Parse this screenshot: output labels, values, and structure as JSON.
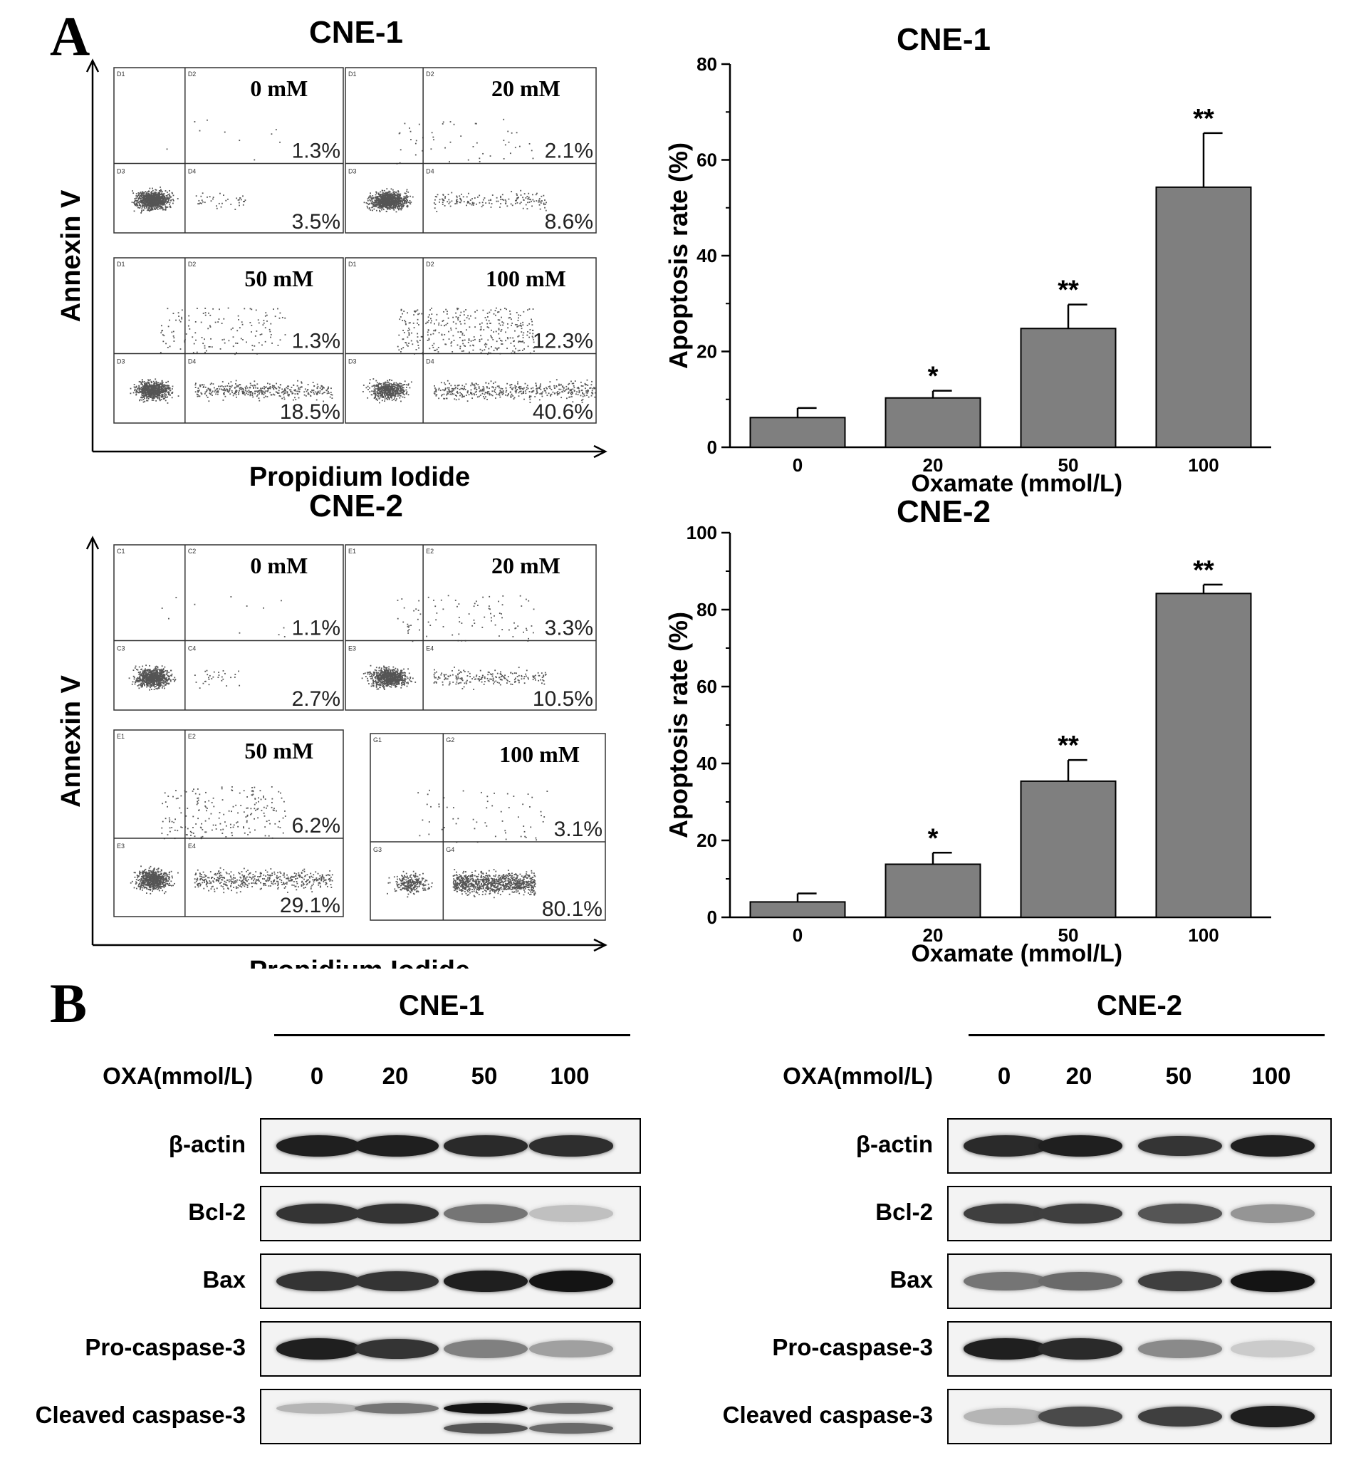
{
  "panels": {
    "a_label": "A",
    "b_label": "B"
  },
  "flow": [
    {
      "title": "CNE-1",
      "ylabel": "Annexin V",
      "xlabel": "Propidium Iodide",
      "plots": [
        {
          "dose": "0 mM",
          "upper_right": "1.3%",
          "lower_right": "3.5%",
          "ids": [
            "D1",
            "D2",
            "D3",
            "D4"
          ]
        },
        {
          "dose": "20 mM",
          "upper_right": "2.1%",
          "lower_right": "8.6%",
          "ids": [
            "D1",
            "D2",
            "D3",
            "D4"
          ]
        },
        {
          "dose": "50 mM",
          "upper_right": "1.3%",
          "lower_right": "18.5%",
          "ids": [
            "D1",
            "D2",
            "D3",
            "D4"
          ]
        },
        {
          "dose": "100 mM",
          "upper_right": "12.3%",
          "lower_right": "40.6%",
          "ids": [
            "D1",
            "D2",
            "D3",
            "D4"
          ]
        }
      ]
    },
    {
      "title": "CNE-2",
      "ylabel": "Annexin V",
      "xlabel": "Propidium Iodide",
      "plots": [
        {
          "dose": "0 mM",
          "upper_right": "1.1%",
          "lower_right": "2.7%",
          "ids": [
            "C1",
            "C2",
            "C3",
            "C4"
          ]
        },
        {
          "dose": "20 mM",
          "upper_right": "3.3%",
          "lower_right": "10.5%",
          "ids": [
            "E1",
            "E2",
            "E3",
            "E4"
          ]
        },
        {
          "dose": "50 mM",
          "upper_right": "6.2%",
          "lower_right": "29.1%",
          "ids": [
            "E1",
            "E2",
            "E3",
            "E4"
          ]
        },
        {
          "dose": "100 mM",
          "upper_right": "3.1%",
          "lower_right": "80.1%",
          "ids": [
            "G1",
            "G2",
            "G3",
            "G4"
          ]
        }
      ]
    }
  ],
  "chart_data": [
    {
      "type": "bar",
      "title": "CNE-1",
      "categories": [
        "0",
        "20",
        "50",
        "100"
      ],
      "values": [
        6.2,
        10.3,
        24.8,
        54.3
      ],
      "errors": [
        2.0,
        1.5,
        5.0,
        11.3
      ],
      "significance": [
        "",
        "*",
        "**",
        "**"
      ],
      "xlabel": "Oxamate  (mmol/L)",
      "ylabel": "Apoptosis rate (%)",
      "ylim": [
        0,
        80
      ],
      "yticks": [
        "0",
        "20",
        "40",
        "60",
        "80"
      ],
      "color": "#7f7f7f"
    },
    {
      "type": "bar",
      "title": "CNE-2",
      "categories": [
        "0",
        "20",
        "50",
        "100"
      ],
      "values": [
        4.0,
        13.8,
        35.4,
        84.2
      ],
      "errors": [
        2.2,
        3.0,
        5.5,
        2.3
      ],
      "significance": [
        "",
        "*",
        "**",
        "**"
      ],
      "xlabel": "Oxamate  (mmol/L)",
      "ylabel": "Apoptosis rate (%)",
      "ylim": [
        0,
        100
      ],
      "yticks": [
        "0",
        "20",
        "40",
        "60",
        "80",
        "100"
      ],
      "color": "#7f7f7f"
    }
  ],
  "western": [
    {
      "title": "CNE-1",
      "dose_label": "OXA(mmol/L)",
      "doses": [
        "0",
        "20",
        "50",
        "100"
      ],
      "rows": [
        {
          "label": "β-actin",
          "bands": [
            [
              0.95
            ],
            [
              0.95
            ],
            [
              0.9
            ],
            [
              0.88
            ]
          ]
        },
        {
          "label": "Bcl-2",
          "bands": [
            [
              0.85
            ],
            [
              0.85
            ],
            [
              0.55
            ],
            [
              0.2
            ]
          ]
        },
        {
          "label": "Bax",
          "bands": [
            [
              0.85
            ],
            [
              0.85
            ],
            [
              0.95
            ],
            [
              1.0
            ]
          ]
        },
        {
          "label": "Pro-caspase-3",
          "bands": [
            [
              0.95
            ],
            [
              0.85
            ],
            [
              0.5
            ],
            [
              0.35
            ]
          ]
        },
        {
          "label": "Cleaved caspase-3",
          "bands": [
            [
              0.25,
              0.0
            ],
            [
              0.55,
              0.0
            ],
            [
              1.0,
              0.7
            ],
            [
              0.6,
              0.6
            ]
          ]
        }
      ]
    },
    {
      "title": "CNE-2",
      "dose_label": "OXA(mmol/L)",
      "doses": [
        "0",
        "20",
        "50",
        "100"
      ],
      "rows": [
        {
          "label": "β-actin",
          "bands": [
            [
              0.9
            ],
            [
              0.95
            ],
            [
              0.85
            ],
            [
              0.95
            ]
          ]
        },
        {
          "label": "Bcl-2",
          "bands": [
            [
              0.8
            ],
            [
              0.8
            ],
            [
              0.7
            ],
            [
              0.4
            ]
          ]
        },
        {
          "label": "Bax",
          "bands": [
            [
              0.55
            ],
            [
              0.6
            ],
            [
              0.8
            ],
            [
              1.0
            ]
          ]
        },
        {
          "label": "Pro-caspase-3",
          "bands": [
            [
              0.95
            ],
            [
              0.9
            ],
            [
              0.45
            ],
            [
              0.15
            ]
          ]
        },
        {
          "label": "Cleaved caspase-3",
          "bands": [
            [
              0.25
            ],
            [
              0.75
            ],
            [
              0.8
            ],
            [
              0.95
            ]
          ]
        }
      ]
    }
  ]
}
